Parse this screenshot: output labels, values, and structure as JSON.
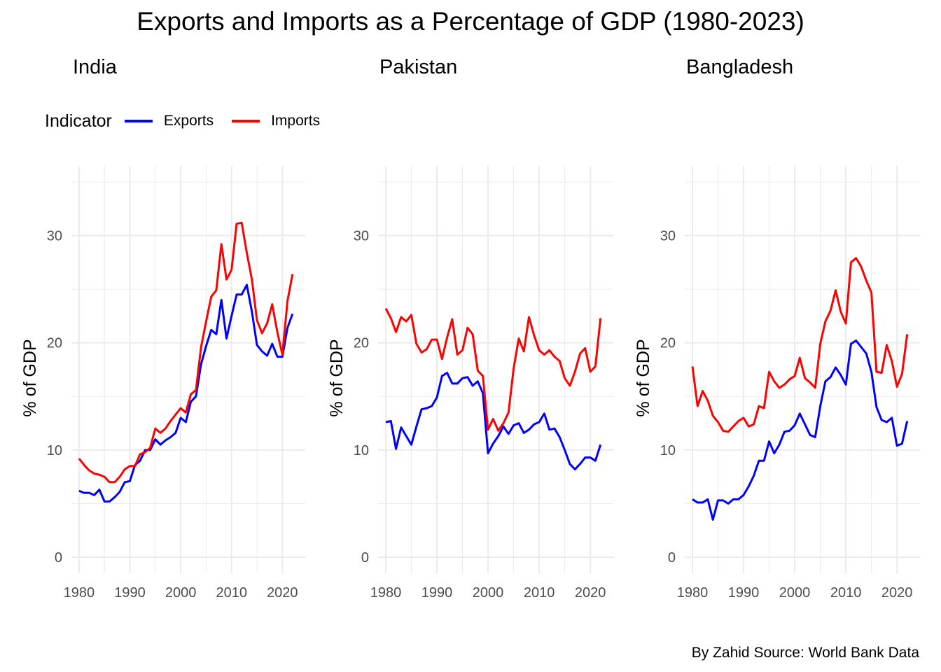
{
  "chart_data": {
    "type": "line",
    "title": "Exports and Imports as a Percentage of GDP (1980-2023)",
    "caption": "By Zahid Source: World Bank Data",
    "legend": {
      "title": "Indicator",
      "placement": "top-left",
      "entries": [
        {
          "name": "Exports",
          "color": "#0000ff"
        },
        {
          "name": "Imports",
          "color": "#ff0000"
        }
      ]
    },
    "xlabel": "",
    "ylabel": "% of GDP",
    "xlim": [
      1978.5,
      2024.5
    ],
    "ylim": [
      -1.5,
      36.5
    ],
    "x_ticks": [
      1980,
      1990,
      2000,
      2010,
      2020
    ],
    "x_tick_labels": [
      "1980",
      "1990",
      "2000",
      "2010",
      "2020"
    ],
    "y_ticks": [
      0,
      10,
      20,
      30
    ],
    "y_tick_labels": [
      "0",
      "10",
      "20",
      "30"
    ],
    "grid": true,
    "x": [
      1980,
      1981,
      1982,
      1983,
      1984,
      1985,
      1986,
      1987,
      1988,
      1989,
      1990,
      1991,
      1992,
      1993,
      1994,
      1995,
      1996,
      1997,
      1998,
      1999,
      2000,
      2001,
      2002,
      2003,
      2004,
      2005,
      2006,
      2007,
      2008,
      2009,
      2010,
      2011,
      2012,
      2013,
      2014,
      2015,
      2016,
      2017,
      2018,
      2019,
      2020,
      2021,
      2022
    ],
    "facets": [
      {
        "name": "India",
        "series": [
          {
            "name": "Exports",
            "values": [
              6.2,
              6.0,
              6.0,
              5.8,
              6.3,
              5.2,
              5.2,
              5.6,
              6.1,
              7.0,
              7.1,
              8.6,
              9.0,
              10.0,
              10.0,
              11.0,
              10.5,
              10.9,
              11.2,
              11.6,
              13.0,
              12.6,
              14.5,
              15.0,
              18.0,
              19.7,
              21.2,
              20.8,
              24.0,
              20.4,
              22.5,
              24.5,
              24.5,
              25.4,
              22.9,
              19.8,
              19.2,
              18.8,
              19.9,
              18.7,
              18.7,
              21.4,
              22.7
            ]
          },
          {
            "name": "Imports",
            "values": [
              9.2,
              8.6,
              8.1,
              7.8,
              7.7,
              7.5,
              7.0,
              7.0,
              7.5,
              8.2,
              8.5,
              8.5,
              9.6,
              9.8,
              10.2,
              12.0,
              11.6,
              12.0,
              12.7,
              13.3,
              13.9,
              13.5,
              15.2,
              15.6,
              19.6,
              22.0,
              24.3,
              24.9,
              29.2,
              25.9,
              26.8,
              31.1,
              31.2,
              28.4,
              25.9,
              22.1,
              20.9,
              21.8,
              23.6,
              21.0,
              18.9,
              23.9,
              26.4
            ]
          }
        ]
      },
      {
        "name": "Pakistan",
        "series": [
          {
            "name": "Exports",
            "values": [
              12.6,
              12.7,
              10.1,
              12.1,
              11.3,
              10.5,
              12.2,
              13.8,
              13.9,
              14.1,
              14.9,
              16.9,
              17.2,
              16.2,
              16.2,
              16.7,
              16.8,
              16.0,
              16.4,
              15.3,
              9.7,
              10.6,
              11.3,
              12.2,
              11.5,
              12.3,
              12.5,
              11.6,
              11.9,
              12.4,
              12.6,
              13.4,
              11.9,
              12.0,
              11.2,
              10.0,
              8.7,
              8.2,
              8.7,
              9.3,
              9.3,
              9.0,
              10.5
            ]
          },
          {
            "name": "Imports",
            "values": [
              23.2,
              22.3,
              21.0,
              22.4,
              22.0,
              22.6,
              19.9,
              19.1,
              19.4,
              20.3,
              20.3,
              18.5,
              20.5,
              22.2,
              18.9,
              19.3,
              21.4,
              20.8,
              17.4,
              16.9,
              11.9,
              12.9,
              11.8,
              12.5,
              13.5,
              17.6,
              20.4,
              19.2,
              22.4,
              20.7,
              19.3,
              18.9,
              19.3,
              18.7,
              18.3,
              16.7,
              16.0,
              17.3,
              19.0,
              19.5,
              17.3,
              17.8,
              22.3
            ]
          }
        ]
      },
      {
        "name": "Bangladesh",
        "series": [
          {
            "name": "Exports",
            "values": [
              5.4,
              5.1,
              5.1,
              5.4,
              3.5,
              5.3,
              5.3,
              5.0,
              5.4,
              5.4,
              5.8,
              6.6,
              7.6,
              9.0,
              9.0,
              10.8,
              9.7,
              10.5,
              11.7,
              11.8,
              12.3,
              13.4,
              12.4,
              11.4,
              11.2,
              14.1,
              16.4,
              16.8,
              17.7,
              17.0,
              16.1,
              19.9,
              20.2,
              19.6,
              19.0,
              17.3,
              14.0,
              12.8,
              12.6,
              13.0,
              10.4,
              10.6,
              12.7
            ]
          },
          {
            "name": "Imports",
            "values": [
              17.8,
              14.1,
              15.5,
              14.6,
              13.2,
              12.6,
              11.8,
              11.7,
              12.2,
              12.7,
              13.0,
              12.2,
              12.4,
              14.1,
              13.9,
              17.3,
              16.4,
              15.8,
              16.1,
              16.6,
              16.9,
              18.6,
              16.7,
              16.3,
              15.8,
              19.9,
              22.0,
              23.0,
              24.9,
              22.9,
              21.8,
              27.5,
              27.9,
              27.1,
              25.8,
              24.7,
              17.3,
              17.2,
              19.8,
              18.3,
              15.9,
              17.1,
              20.8
            ]
          }
        ]
      }
    ]
  }
}
